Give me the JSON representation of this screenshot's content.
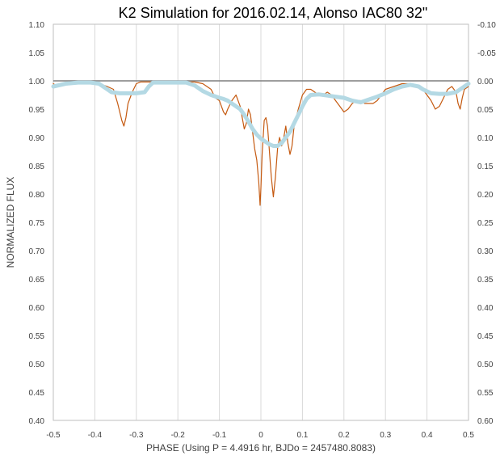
{
  "chart_data": {
    "type": "line",
    "title": "K2 Simulation for 2016.02.14, Alonso IAC80 32\"",
    "xlabel": "PHASE (Using P = 4.4916 hr, BJDo = 2457480.8083)",
    "ylabel": "NORMALIZED FLUX",
    "xlim": [
      -0.5,
      0.5
    ],
    "ylim": [
      0.4,
      1.1
    ],
    "y2lim": [
      0.6,
      -0.1
    ],
    "grid": "vertical",
    "legend": "none",
    "x_tick_labels": [
      "-0.5",
      "-0.4",
      "-0.3",
      "-0.2",
      "-0.1",
      "0",
      "0.1",
      "0.2",
      "0.3",
      "0.4",
      "0.5"
    ],
    "y_tick_labels": [
      "1.10",
      "1.05",
      "1.00",
      "0.95",
      "0.90",
      "0.85",
      "0.80",
      "0.75",
      "0.70",
      "0.65",
      "0.60",
      "0.55",
      "0.50",
      "0.45",
      "0.40"
    ],
    "y2_tick_labels": [
      "-0.10",
      "-0.05",
      "0.00",
      "0.05",
      "0.10",
      "0.15",
      "0.20",
      "0.25",
      "0.30",
      "0.35",
      "0.40",
      "0.45",
      "0.50",
      "0.55",
      "0.60"
    ],
    "reference_line": {
      "y": 1.0,
      "color": "#7f7f7f"
    },
    "series": [
      {
        "color": "#c55a11",
        "style": "thin",
        "x": [
          -0.5,
          -0.49,
          -0.47,
          -0.45,
          -0.43,
          -0.41,
          -0.39,
          -0.37,
          -0.355,
          -0.345,
          -0.335,
          -0.33,
          -0.325,
          -0.32,
          -0.31,
          -0.3,
          -0.29,
          -0.27,
          -0.25,
          -0.22,
          -0.2,
          -0.18,
          -0.16,
          -0.14,
          -0.13,
          -0.12,
          -0.11,
          -0.1,
          -0.09,
          -0.085,
          -0.08,
          -0.07,
          -0.06,
          -0.05,
          -0.045,
          -0.04,
          -0.035,
          -0.03,
          -0.025,
          -0.02,
          -0.015,
          -0.01,
          -0.005,
          -0.002,
          0.0,
          0.003,
          0.008,
          0.012,
          0.016,
          0.02,
          0.025,
          0.03,
          0.035,
          0.04,
          0.045,
          0.05,
          0.055,
          0.06,
          0.065,
          0.07,
          0.075,
          0.08,
          0.09,
          0.1,
          0.11,
          0.12,
          0.13,
          0.14,
          0.15,
          0.16,
          0.17,
          0.18,
          0.19,
          0.2,
          0.21,
          0.22,
          0.23,
          0.24,
          0.25,
          0.26,
          0.27,
          0.28,
          0.29,
          0.3,
          0.32,
          0.34,
          0.36,
          0.38,
          0.39,
          0.4,
          0.41,
          0.42,
          0.43,
          0.44,
          0.45,
          0.46,
          0.47,
          0.475,
          0.48,
          0.485,
          0.49,
          0.5
        ],
        "y": [
          0.995,
          0.99,
          0.995,
          0.997,
          0.997,
          0.997,
          0.995,
          0.99,
          0.985,
          0.96,
          0.93,
          0.92,
          0.935,
          0.96,
          0.98,
          0.995,
          0.998,
          0.998,
          0.998,
          0.998,
          0.998,
          0.998,
          0.998,
          0.995,
          0.99,
          0.985,
          0.97,
          0.965,
          0.945,
          0.94,
          0.95,
          0.965,
          0.975,
          0.955,
          0.935,
          0.915,
          0.925,
          0.95,
          0.94,
          0.91,
          0.88,
          0.86,
          0.82,
          0.78,
          0.81,
          0.87,
          0.93,
          0.935,
          0.92,
          0.88,
          0.83,
          0.795,
          0.83,
          0.88,
          0.9,
          0.885,
          0.9,
          0.92,
          0.89,
          0.87,
          0.885,
          0.92,
          0.95,
          0.975,
          0.985,
          0.985,
          0.98,
          0.975,
          0.975,
          0.98,
          0.975,
          0.965,
          0.955,
          0.945,
          0.95,
          0.96,
          0.965,
          0.965,
          0.96,
          0.96,
          0.96,
          0.965,
          0.975,
          0.985,
          0.99,
          0.995,
          0.995,
          0.99,
          0.985,
          0.975,
          0.965,
          0.95,
          0.955,
          0.97,
          0.985,
          0.99,
          0.98,
          0.96,
          0.95,
          0.97,
          0.985,
          0.99
        ]
      },
      {
        "color": "#b4d9e4",
        "style": "thick",
        "x": [
          -0.5,
          -0.47,
          -0.44,
          -0.41,
          -0.39,
          -0.38,
          -0.37,
          -0.36,
          -0.34,
          -0.32,
          -0.3,
          -0.28,
          -0.27,
          -0.26,
          -0.24,
          -0.22,
          -0.2,
          -0.18,
          -0.16,
          -0.14,
          -0.12,
          -0.1,
          -0.09,
          -0.08,
          -0.07,
          -0.06,
          -0.05,
          -0.04,
          -0.03,
          -0.02,
          -0.01,
          0.0,
          0.01,
          0.02,
          0.03,
          0.04,
          0.05,
          0.06,
          0.07,
          0.08,
          0.09,
          0.1,
          0.11,
          0.12,
          0.14,
          0.16,
          0.18,
          0.2,
          0.22,
          0.24,
          0.26,
          0.28,
          0.3,
          0.32,
          0.34,
          0.36,
          0.38,
          0.39,
          0.41,
          0.43,
          0.45,
          0.47,
          0.48,
          0.49,
          0.5
        ],
        "y": [
          0.99,
          0.995,
          0.997,
          0.997,
          0.995,
          0.99,
          0.985,
          0.98,
          0.978,
          0.978,
          0.978,
          0.98,
          0.99,
          0.997,
          0.997,
          0.997,
          0.997,
          0.997,
          0.992,
          0.982,
          0.975,
          0.97,
          0.968,
          0.965,
          0.96,
          0.955,
          0.95,
          0.94,
          0.928,
          0.915,
          0.905,
          0.898,
          0.893,
          0.888,
          0.885,
          0.885,
          0.89,
          0.9,
          0.91,
          0.925,
          0.94,
          0.955,
          0.968,
          0.975,
          0.976,
          0.974,
          0.972,
          0.97,
          0.965,
          0.962,
          0.967,
          0.972,
          0.978,
          0.985,
          0.99,
          0.993,
          0.99,
          0.985,
          0.978,
          0.977,
          0.977,
          0.98,
          0.985,
          0.99,
          0.995
        ]
      }
    ]
  }
}
